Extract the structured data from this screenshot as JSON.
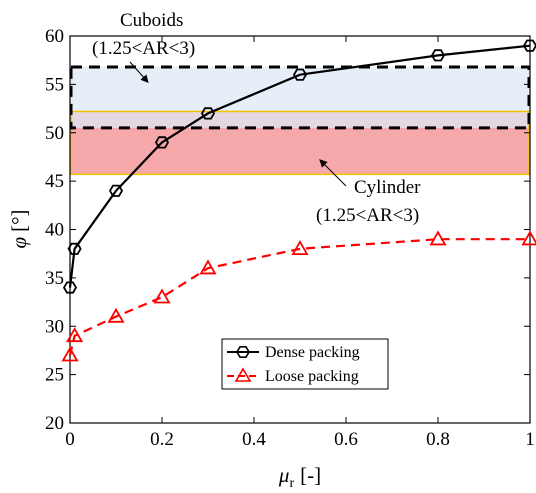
{
  "chart_data": {
    "type": "line",
    "xlabel_symbol": "μ",
    "xlabel_sub": "r",
    "xlabel_unit": "[-]",
    "ylabel_symbol": "φ",
    "ylabel_unit": "[°]",
    "xlim": [
      0,
      1
    ],
    "ylim": [
      20,
      60
    ],
    "xticks": [
      0,
      0.2,
      0.4,
      0.6,
      0.8,
      1
    ],
    "xtick_labels": [
      "0",
      "0.2",
      "0.4",
      "0.6",
      "0.8",
      "1"
    ],
    "yticks": [
      20,
      25,
      30,
      35,
      40,
      45,
      50,
      55,
      60
    ],
    "ytick_labels": [
      "20",
      "25",
      "30",
      "35",
      "40",
      "45",
      "50",
      "55",
      "60"
    ],
    "grid": false,
    "legend_position": "bottom-center",
    "series": [
      {
        "name": "Dense packing",
        "color": "#000000",
        "line_style": "solid",
        "marker": "hexagon",
        "x": [
          0,
          0.01,
          0.1,
          0.2,
          0.3,
          0.5,
          0.8,
          1
        ],
        "y": [
          34,
          38,
          44,
          49,
          52,
          56,
          58,
          59
        ]
      },
      {
        "name": "Loose packing",
        "color": "#ff0000",
        "line_style": "dashed",
        "marker": "triangle",
        "x": [
          0,
          0.01,
          0.1,
          0.2,
          0.3,
          0.5,
          0.8,
          1
        ],
        "y": [
          27,
          29,
          31,
          33,
          36,
          38,
          39,
          39
        ]
      }
    ],
    "bands": [
      {
        "label_line1": "Cuboids",
        "label_line2": "(1.25<AR<3)",
        "y_range": [
          50.5,
          56.8
        ],
        "fill": "#dde8f4",
        "border": "#000000",
        "border_style": "dashed"
      },
      {
        "label_line1": "Cylinder",
        "label_line2": "(1.25<AR<3)",
        "y_range": [
          45.7,
          52.2
        ],
        "fill": "#f7a8aa",
        "border": "#f2c400",
        "border_style": "solid"
      }
    ]
  }
}
